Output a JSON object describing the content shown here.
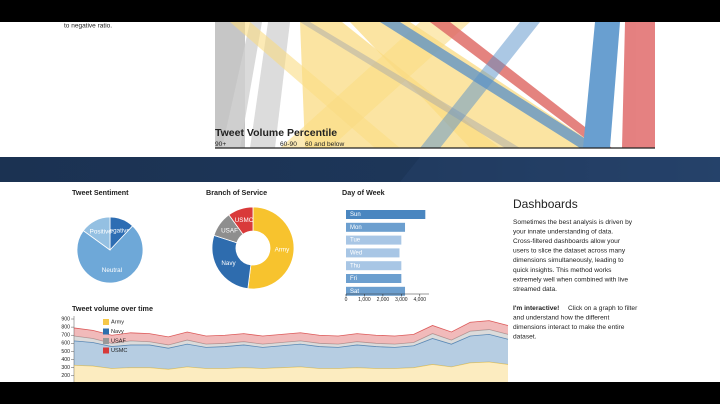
{
  "intro_fragment": "to negative ratio.",
  "dashboards": {
    "title": "Dashboards",
    "paragraph_lines": [
      "Sometimes the best analysis is driven by",
      "your innate understanding of data.",
      "Cross-filtered dashboards allow your",
      "users to slice the dataset across many",
      "dimensions simultaneously, leading to",
      "quick insights. This method works",
      "extremely well when combined with live",
      "streamed data."
    ],
    "interactive_label": "I'm interactive!",
    "interactive_lines": [
      "Click on a graph to filter",
      "and understand how the different",
      "dimensions interact to make the entire",
      "dataset."
    ]
  },
  "chart_data": [
    {
      "type": "parallel-sets",
      "title": "Tweet Volume Percentile",
      "categories": [
        "90+",
        "60-90",
        "60 and below"
      ]
    },
    {
      "type": "pie",
      "title": "Tweet Sentiment",
      "categories": [
        "Negative",
        "Neutral",
        "Positive"
      ],
      "values": [
        12,
        73,
        15
      ],
      "colors": [
        "#2d6db3",
        "#6ea8d8",
        "#94c0e2"
      ]
    },
    {
      "type": "donut",
      "title": "Branch of Service",
      "categories": [
        "Army",
        "Navy",
        "USAF",
        "USMC"
      ],
      "values": [
        52,
        28,
        10,
        10
      ],
      "colors": [
        "#f7c32e",
        "#2e6cae",
        "#8e8e8e",
        "#d93a3a"
      ]
    },
    {
      "type": "bar",
      "orientation": "horizontal",
      "title": "Day of Week",
      "categories": [
        "Sun",
        "Mon",
        "Tue",
        "Wed",
        "Thu",
        "Fri",
        "Sat"
      ],
      "values": [
        4300,
        3200,
        3000,
        2900,
        3000,
        3000,
        3200
      ],
      "colors": [
        "#4a86c0",
        "#6c9fcf",
        "#a8c6e5",
        "#a8c6e5",
        "#a8c6e5",
        "#6c9fcf",
        "#6c9fcf"
      ],
      "xlim": [
        0,
        4500
      ],
      "xticks": [
        0,
        {
          "value": 1000,
          "label": "1,000"
        },
        {
          "value": 2000,
          "label": "2,000"
        },
        {
          "value": 3000,
          "label": "3,000"
        },
        {
          "value": 4000,
          "label": "4,000"
        }
      ]
    },
    {
      "type": "area",
      "stacked": true,
      "title": "Tweet volume over time",
      "series": [
        {
          "name": "Army",
          "color": "#f5c84a",
          "values": [
            330,
            320,
            290,
            300,
            300,
            280,
            310,
            290,
            290,
            300,
            290,
            300,
            310,
            290,
            290,
            300,
            290,
            290,
            300,
            340,
            310,
            360,
            370,
            340
          ]
        },
        {
          "name": "Navy",
          "color": "#2f6fad",
          "values": [
            300,
            290,
            270,
            280,
            280,
            260,
            280,
            260,
            270,
            280,
            260,
            270,
            280,
            270,
            260,
            280,
            270,
            260,
            270,
            320,
            280,
            330,
            340,
            310
          ]
        },
        {
          "name": "USAF",
          "color": "#999999",
          "values": [
            60,
            50,
            40,
            50,
            40,
            40,
            50,
            40,
            40,
            40,
            40,
            40,
            40,
            40,
            40,
            40,
            40,
            40,
            40,
            60,
            50,
            60,
            60,
            60
          ]
        },
        {
          "name": "USMC",
          "color": "#d63a3a",
          "values": [
            100,
            100,
            100,
            100,
            100,
            100,
            100,
            100,
            100,
            100,
            100,
            100,
            100,
            100,
            100,
            100,
            100,
            100,
            100,
            100,
            100,
            110,
            110,
            110
          ]
        }
      ],
      "ylim": [
        0,
        900
      ],
      "yticks": [
        200,
        300,
        400,
        500,
        600,
        700,
        800,
        900
      ]
    }
  ]
}
